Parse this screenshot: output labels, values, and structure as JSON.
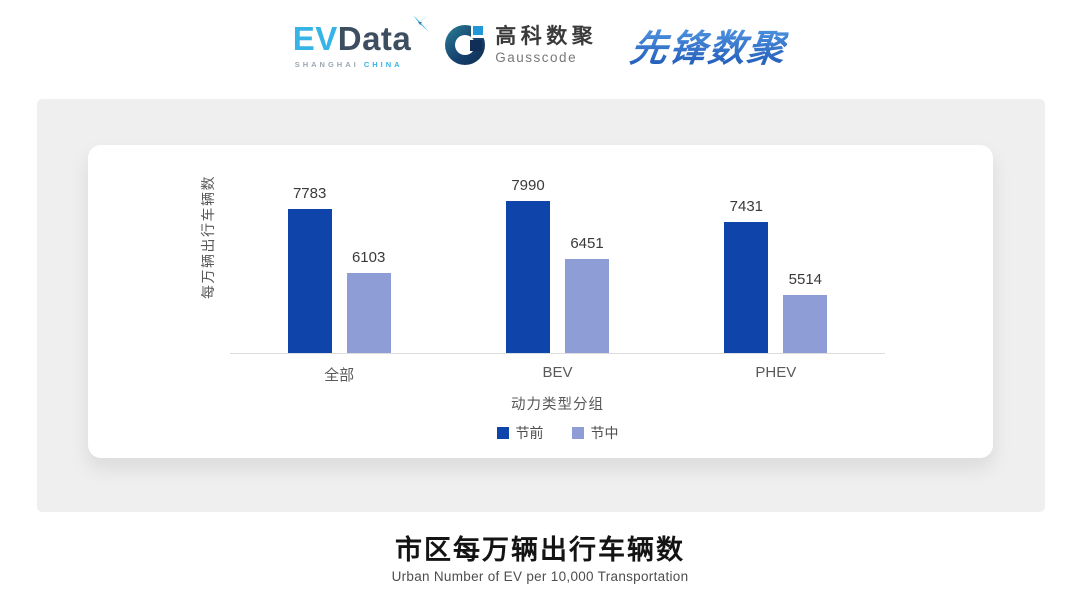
{
  "header": {
    "evdata": {
      "part1": "EV",
      "part2": "Data",
      "mark_icon": "x-spark-icon",
      "sub_location": "SHANGHAI",
      "sub_country": "CHINA",
      "accent_color": "#35b4e5",
      "dark_color": "#3d4e60"
    },
    "gausscode": {
      "cn": "高科数聚",
      "en": "Gausscode",
      "mark_icon": "g-ring-icon",
      "navy_color": "#112f56",
      "bright_blue": "#2196d9"
    },
    "xianfeng": {
      "text": "先锋数聚",
      "blue_color": "#2a66c8"
    }
  },
  "chart_data": {
    "type": "bar",
    "title": "市区每万辆出行车辆数",
    "subtitle": "Urban Number of EV per 10,000 Transportation",
    "categories": [
      "全部",
      "BEV",
      "PHEV"
    ],
    "series": [
      {
        "name": "节前",
        "color": "#0f45ab",
        "values": [
          7783,
          7990,
          7431
        ]
      },
      {
        "name": "节中",
        "color": "#8f9dd6",
        "values": [
          6103,
          6451,
          5514
        ]
      }
    ],
    "xlabel": "动力类型分组",
    "ylabel": "每万辆出行车辆数",
    "ylim": [
      4000,
      8400
    ],
    "grid": false,
    "legend_position": "bottom",
    "value_labels": true,
    "axis_color": "#dcdcdc"
  }
}
